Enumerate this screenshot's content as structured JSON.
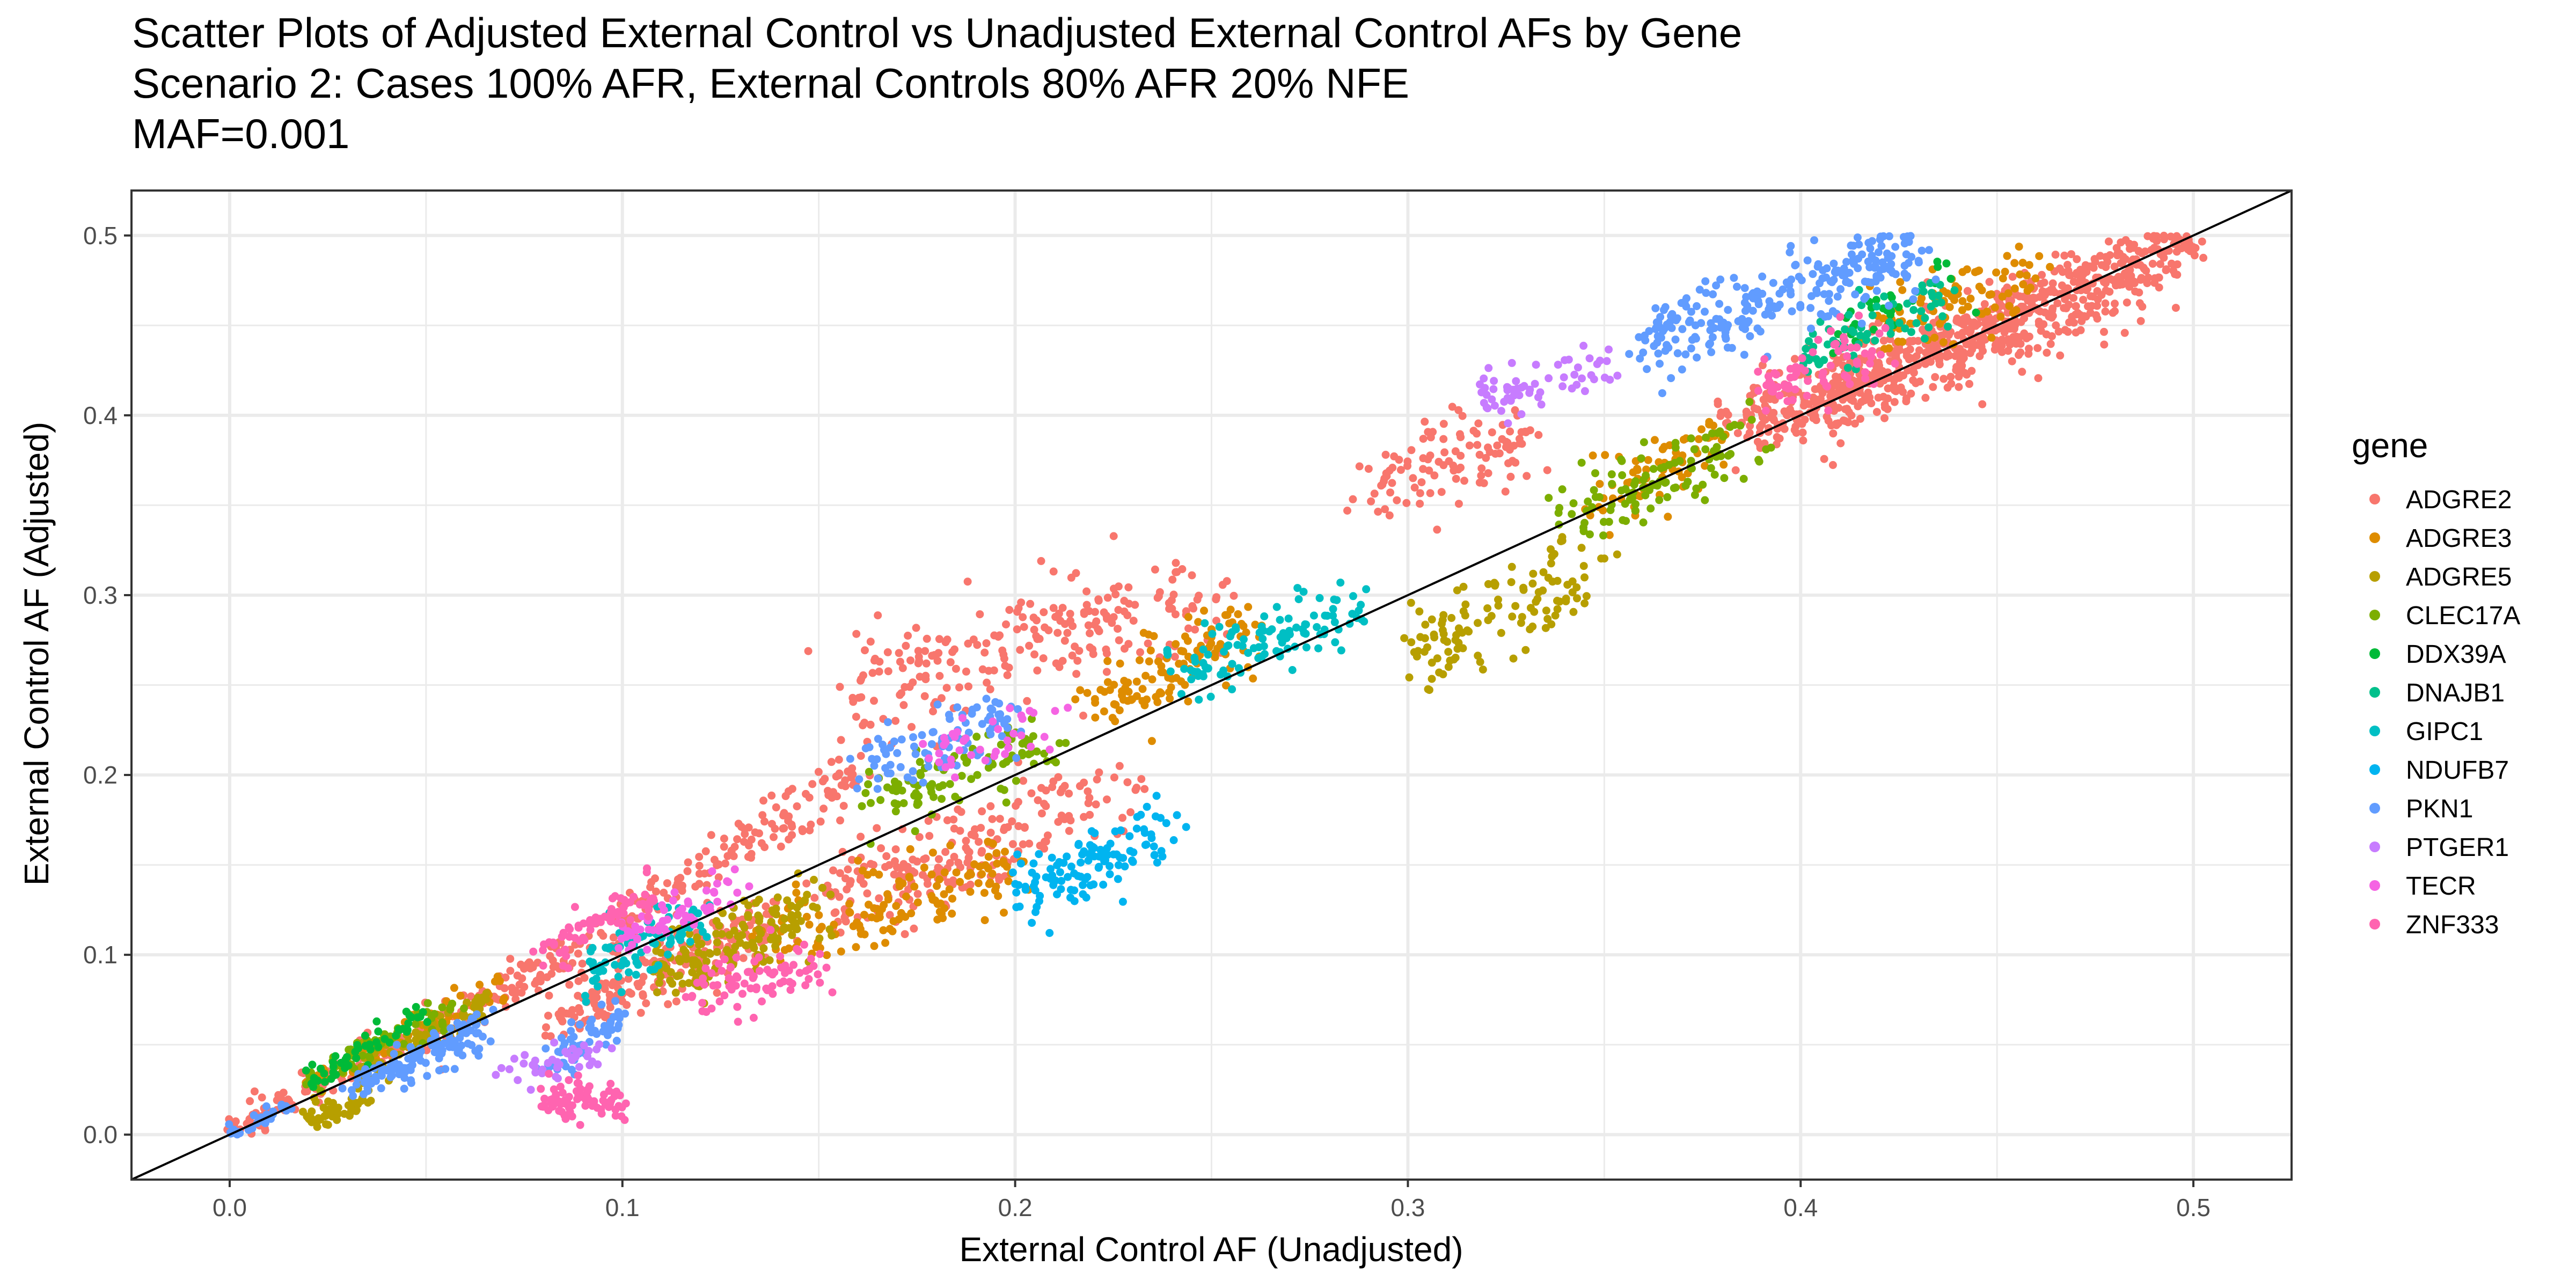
{
  "chart_data": {
    "type": "scatter",
    "title_lines": [
      "Scatter Plots of Adjusted External Control vs Unadjusted External Control AFs by Gene",
      "Scenario 2: Cases 100% AFR, External Controls 80% AFR 20% NFE",
      "MAF=0.001"
    ],
    "xlabel": "External Control AF (Unadjusted)",
    "ylabel": "External Control AF (Adjusted)",
    "xlim": [
      -0.025,
      0.525
    ],
    "ylim": [
      -0.025,
      0.525
    ],
    "x_ticks": [
      "0.0",
      "0.1",
      "0.2",
      "0.3",
      "0.4",
      "0.5"
    ],
    "y_ticks": [
      "0.0",
      "0.1",
      "0.2",
      "0.3",
      "0.4",
      "0.5"
    ],
    "grid": true,
    "reference_line": "y = x",
    "legend": {
      "title": "gene",
      "position": "right"
    },
    "series": [
      {
        "name": "ADGRE2",
        "color": "#F8766D",
        "clusters": [
          {
            "x": [
              0.05,
              0.16
            ],
            "slope": 1.35,
            "intercept": -0.015,
            "n": 260,
            "spread": 0.007
          },
          {
            "x": [
              0.08,
              0.14
            ],
            "slope": 1.0,
            "intercept": -0.02,
            "n": 200,
            "spread": 0.008
          },
          {
            "x": [
              0.16,
              0.25
            ],
            "slope": 0.55,
            "intercept": 0.16,
            "n": 230,
            "spread": 0.015
          },
          {
            "x": [
              0.29,
              0.33
            ],
            "slope": 0.6,
            "intercept": 0.19,
            "n": 110,
            "spread": 0.012
          },
          {
            "x": [
              0.38,
              0.5
            ],
            "slope": 0.9,
            "intercept": 0.048,
            "n": 520,
            "spread": 0.01
          },
          {
            "x": [
              0.4,
              0.49
            ],
            "slope": 0.9,
            "intercept": 0.04,
            "n": 280,
            "spread": 0.012
          },
          {
            "x": [
              0.15,
              0.23
            ],
            "slope": 0.75,
            "intercept": 0.02,
            "n": 140,
            "spread": 0.01
          },
          {
            "x": [
              0.15,
              0.2
            ],
            "slope": 0.9,
            "intercept": -0.02,
            "n": 80,
            "spread": 0.01
          },
          {
            "x": [
              0.0,
              0.05
            ],
            "slope": 1.15,
            "intercept": 0.002,
            "n": 90,
            "spread": 0.005
          }
        ]
      },
      {
        "name": "ADGRE3",
        "color": "#DE8C00",
        "clusters": [
          {
            "x": [
              0.13,
              0.2
            ],
            "slope": 0.7,
            "intercept": 0.01,
            "n": 140,
            "spread": 0.01
          },
          {
            "x": [
              0.22,
              0.26
            ],
            "slope": 1.0,
            "intercept": 0.02,
            "n": 120,
            "spread": 0.012
          },
          {
            "x": [
              0.35,
              0.38
            ],
            "slope": 1.0,
            "intercept": 0.005,
            "n": 80,
            "spread": 0.01
          },
          {
            "x": [
              0.42,
              0.46
            ],
            "slope": 0.75,
            "intercept": 0.135,
            "n": 90,
            "spread": 0.01
          },
          {
            "x": [
              0.02,
              0.07
            ],
            "slope": 1.1,
            "intercept": 0.005,
            "n": 70,
            "spread": 0.005
          }
        ]
      },
      {
        "name": "ADGRE5",
        "color": "#B79F00",
        "clusters": [
          {
            "x": [
              0.3,
              0.35
            ],
            "slope": 1.0,
            "intercept": -0.035,
            "n": 120,
            "spread": 0.012
          },
          {
            "x": [
              0.11,
              0.15
            ],
            "slope": 0.95,
            "intercept": -0.015,
            "n": 150,
            "spread": 0.01
          },
          {
            "x": [
              0.03,
              0.065
            ],
            "slope": 1.1,
            "intercept": 0.0,
            "n": 80,
            "spread": 0.005
          },
          {
            "x": [
              0.02,
              0.035
            ],
            "slope": 0.8,
            "intercept": -0.008,
            "n": 50,
            "spread": 0.004
          }
        ]
      },
      {
        "name": "CLEC17A",
        "color": "#7CAE00",
        "clusters": [
          {
            "x": [
              0.16,
              0.21
            ],
            "slope": 0.75,
            "intercept": 0.06,
            "n": 100,
            "spread": 0.01
          },
          {
            "x": [
              0.34,
              0.39
            ],
            "slope": 1.0,
            "intercept": 0.0,
            "n": 110,
            "spread": 0.01
          },
          {
            "x": [
              0.02,
              0.06
            ],
            "slope": 1.1,
            "intercept": 0.007,
            "n": 60,
            "spread": 0.005
          }
        ]
      },
      {
        "name": "DDX39A",
        "color": "#00BA38",
        "clusters": [
          {
            "x": [
              0.02,
              0.05
            ],
            "slope": 1.2,
            "intercept": 0.005,
            "n": 50,
            "spread": 0.004
          },
          {
            "x": [
              0.41,
              0.44
            ],
            "slope": 0.8,
            "intercept": 0.12,
            "n": 30,
            "spread": 0.008
          }
        ]
      },
      {
        "name": "DNAJB1",
        "color": "#00C08B",
        "clusters": [
          {
            "x": [
              0.4,
              0.44
            ],
            "slope": 0.8,
            "intercept": 0.115,
            "n": 70,
            "spread": 0.008
          }
        ]
      },
      {
        "name": "GIPC1",
        "color": "#00BFC4",
        "clusters": [
          {
            "x": [
              0.24,
              0.29
            ],
            "slope": 0.85,
            "intercept": 0.05,
            "n": 110,
            "spread": 0.01
          },
          {
            "x": [
              0.09,
              0.12
            ],
            "slope": 1.0,
            "intercept": 0.0,
            "n": 80,
            "spread": 0.008
          }
        ]
      },
      {
        "name": "NDUFB7",
        "color": "#00B4F0",
        "clusters": [
          {
            "x": [
              0.2,
              0.24
            ],
            "slope": 0.9,
            "intercept": -0.045,
            "n": 120,
            "spread": 0.01
          }
        ]
      },
      {
        "name": "PKN1",
        "color": "#619CFF",
        "clusters": [
          {
            "x": [
              0.36,
              0.43
            ],
            "slope": 0.75,
            "intercept": 0.17,
            "n": 260,
            "spread": 0.01
          },
          {
            "x": [
              0.16,
              0.2
            ],
            "slope": 0.6,
            "intercept": 0.11,
            "n": 90,
            "spread": 0.01
          },
          {
            "x": [
              0.03,
              0.065
            ],
            "slope": 1.0,
            "intercept": -0.005,
            "n": 130,
            "spread": 0.005
          },
          {
            "x": [
              0.08,
              0.1
            ],
            "slope": 1.3,
            "intercept": -0.065,
            "n": 60,
            "spread": 0.006
          },
          {
            "x": [
              0.0,
              0.015
            ],
            "slope": 1.0,
            "intercept": 0.0,
            "n": 30,
            "spread": 0.003
          }
        ]
      },
      {
        "name": "PTGER1",
        "color": "#C77CFF",
        "clusters": [
          {
            "x": [
              0.32,
              0.35
            ],
            "slope": 0.5,
            "intercept": 0.25,
            "n": 60,
            "spread": 0.008
          },
          {
            "x": [
              0.07,
              0.095
            ],
            "slope": 0.6,
            "intercept": -0.01,
            "n": 40,
            "spread": 0.005
          }
        ]
      },
      {
        "name": "TECR",
        "color": "#F564E3",
        "clusters": [
          {
            "x": [
              0.18,
              0.21
            ],
            "slope": 0.6,
            "intercept": 0.105,
            "n": 40,
            "spread": 0.008
          },
          {
            "x": [
              0.1,
              0.13
            ],
            "slope": 0.9,
            "intercept": 0.02,
            "n": 60,
            "spread": 0.006
          }
        ]
      },
      {
        "name": "ZNF333",
        "color": "#FF64B0",
        "clusters": [
          {
            "x": [
              0.08,
              0.1
            ],
            "slope": 0.0,
            "intercept": 0.02,
            "n": 80,
            "spread": 0.006
          },
          {
            "x": [
              0.12,
              0.15
            ],
            "slope": 0.5,
            "intercept": 0.02,
            "n": 80,
            "spread": 0.008
          },
          {
            "x": [
              0.39,
              0.42
            ],
            "slope": 0.9,
            "intercept": 0.06,
            "n": 70,
            "spread": 0.01
          },
          {
            "x": [
              0.08,
              0.11
            ],
            "slope": 1.1,
            "intercept": 0.015,
            "n": 70,
            "spread": 0.006
          }
        ]
      }
    ]
  }
}
